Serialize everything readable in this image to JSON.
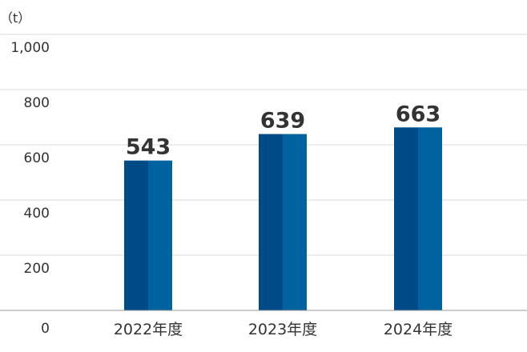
{
  "chart_data": {
    "type": "bar",
    "unit": "（t）",
    "categories": [
      "2022年度",
      "2023年度",
      "2024年度"
    ],
    "values": [
      543,
      639,
      663
    ],
    "value_labels": [
      "543",
      "639",
      "663"
    ],
    "yticks": [
      "0",
      "200",
      "400",
      "600",
      "800",
      "1,000"
    ],
    "ylim": [
      0,
      1000
    ],
    "grid": true,
    "colors": {
      "bar_dark": "#004A87",
      "bar_light": "#00629F",
      "grid": "#d9d9d9",
      "axis": "#999999",
      "text": "#333333"
    }
  }
}
